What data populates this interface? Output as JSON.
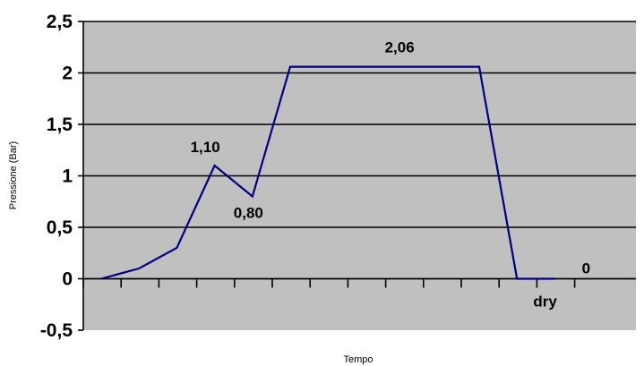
{
  "chart_data": {
    "type": "line",
    "title": "",
    "xlabel": "Tempo",
    "ylabel": "Pressione (Bar)",
    "ylim": [
      -0.5,
      2.5
    ],
    "y_ticks": [
      "-0,5",
      "0",
      "0,5",
      "1",
      "1,5",
      "2",
      "2,5"
    ],
    "grid": true,
    "legend": "none",
    "colors": {
      "plot_background": "#c0c0c0",
      "line": "#000080",
      "gridline": "#000000"
    },
    "series": [
      {
        "values": [
          0,
          0.1,
          0.3,
          1.1,
          0.8,
          2.06,
          2.06,
          2.06,
          2.06,
          2.06,
          2.06,
          0,
          0
        ]
      }
    ],
    "annotations": [
      {
        "text": "1,10",
        "point": 3
      },
      {
        "text": "0,80",
        "point": 4
      },
      {
        "text": "2,06",
        "point": 8
      },
      {
        "text": "dry",
        "point": 12
      },
      {
        "text": "0",
        "point": 13
      }
    ]
  }
}
